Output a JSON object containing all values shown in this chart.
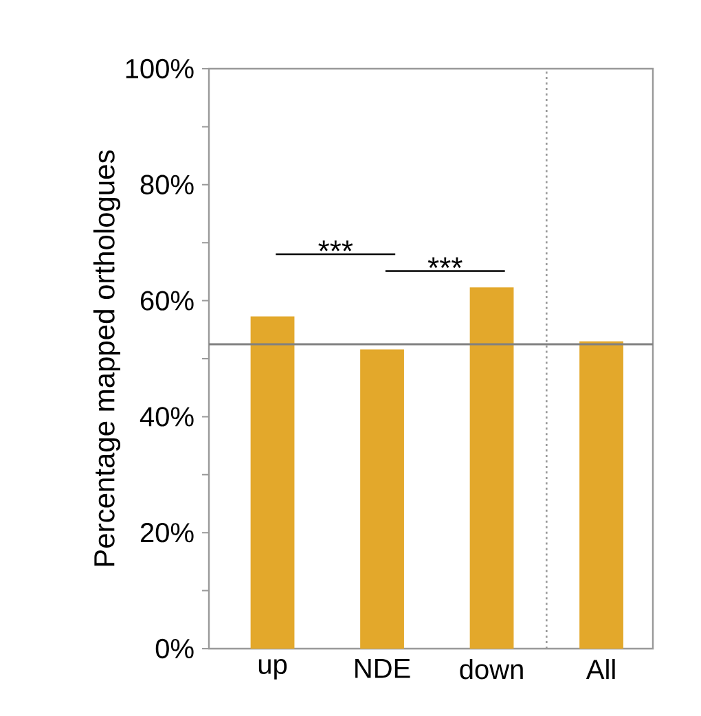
{
  "chart_data": {
    "type": "bar",
    "ylabel": "Percentage mapped orthologues",
    "categories": [
      "up",
      "NDE",
      "down",
      "All"
    ],
    "values": [
      57.3,
      51.6,
      62.3,
      53.0
    ],
    "color": "#e3a82b",
    "ylim": [
      0,
      100
    ],
    "yticks": [
      {
        "value": 0,
        "label": "0%"
      },
      {
        "value": 10,
        "label": null
      },
      {
        "value": 20,
        "label": "20%"
      },
      {
        "value": 30,
        "label": null
      },
      {
        "value": 40,
        "label": "40%"
      },
      {
        "value": 50,
        "label": null
      },
      {
        "value": 60,
        "label": "60%"
      },
      {
        "value": 70,
        "label": null
      },
      {
        "value": 80,
        "label": "80%"
      },
      {
        "value": 90,
        "label": null
      },
      {
        "value": 100,
        "label": "100%"
      }
    ],
    "ref_lines": [
      {
        "axis": "y",
        "value": 52.5,
        "color": "#808080",
        "line_style": "solid"
      }
    ],
    "annotations": [
      "***",
      "***"
    ]
  }
}
